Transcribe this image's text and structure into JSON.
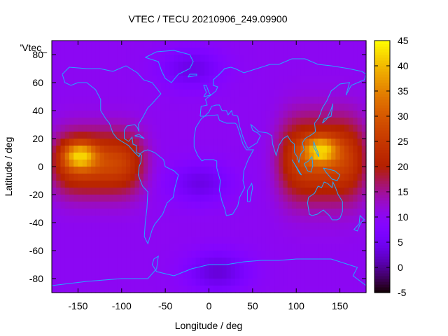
{
  "chart_data": {
    "type": "heatmap",
    "title": "VTEC / TECU 20210906_249.09900",
    "xlabel": "Longitude / deg",
    "ylabel": "Latitude / deg",
    "xlim": [
      -180,
      180
    ],
    "ylim": [
      -90,
      90
    ],
    "xticks": [
      -150,
      -100,
      -50,
      0,
      50,
      100,
      150
    ],
    "yticks": [
      -80,
      -60,
      -40,
      -20,
      0,
      20,
      40,
      60,
      80
    ],
    "legend_entry": "'Vtec_",
    "colorbar": {
      "range": [
        -5,
        45
      ],
      "ticks": [
        -5,
        0,
        5,
        10,
        15,
        20,
        25,
        30,
        35,
        40,
        45
      ],
      "colormap": "gnuplot black-purple-red-orange-yellow"
    },
    "grid": false,
    "background_value": 10,
    "field_features": [
      {
        "feature": "peak",
        "lon": -148,
        "lat": 8,
        "value": 42
      },
      {
        "feature": "peak",
        "lon": 128,
        "lat": 12,
        "value": 42
      },
      {
        "feature": "band",
        "lon_range": [
          -180,
          -75
        ],
        "lat_range": [
          -20,
          25
        ],
        "value": 28
      },
      {
        "feature": "band",
        "lon_range": [
          80,
          180
        ],
        "lat_range": [
          -25,
          35
        ],
        "value": 28
      },
      {
        "feature": "trough",
        "lon": -10,
        "lat": -12,
        "value": 4
      },
      {
        "feature": "trough",
        "lon": 10,
        "lat": -75,
        "value": 3
      },
      {
        "feature": "trough",
        "lon": -20,
        "lat": 70,
        "value": 4
      }
    ],
    "coastline_color": "#22aaff"
  }
}
